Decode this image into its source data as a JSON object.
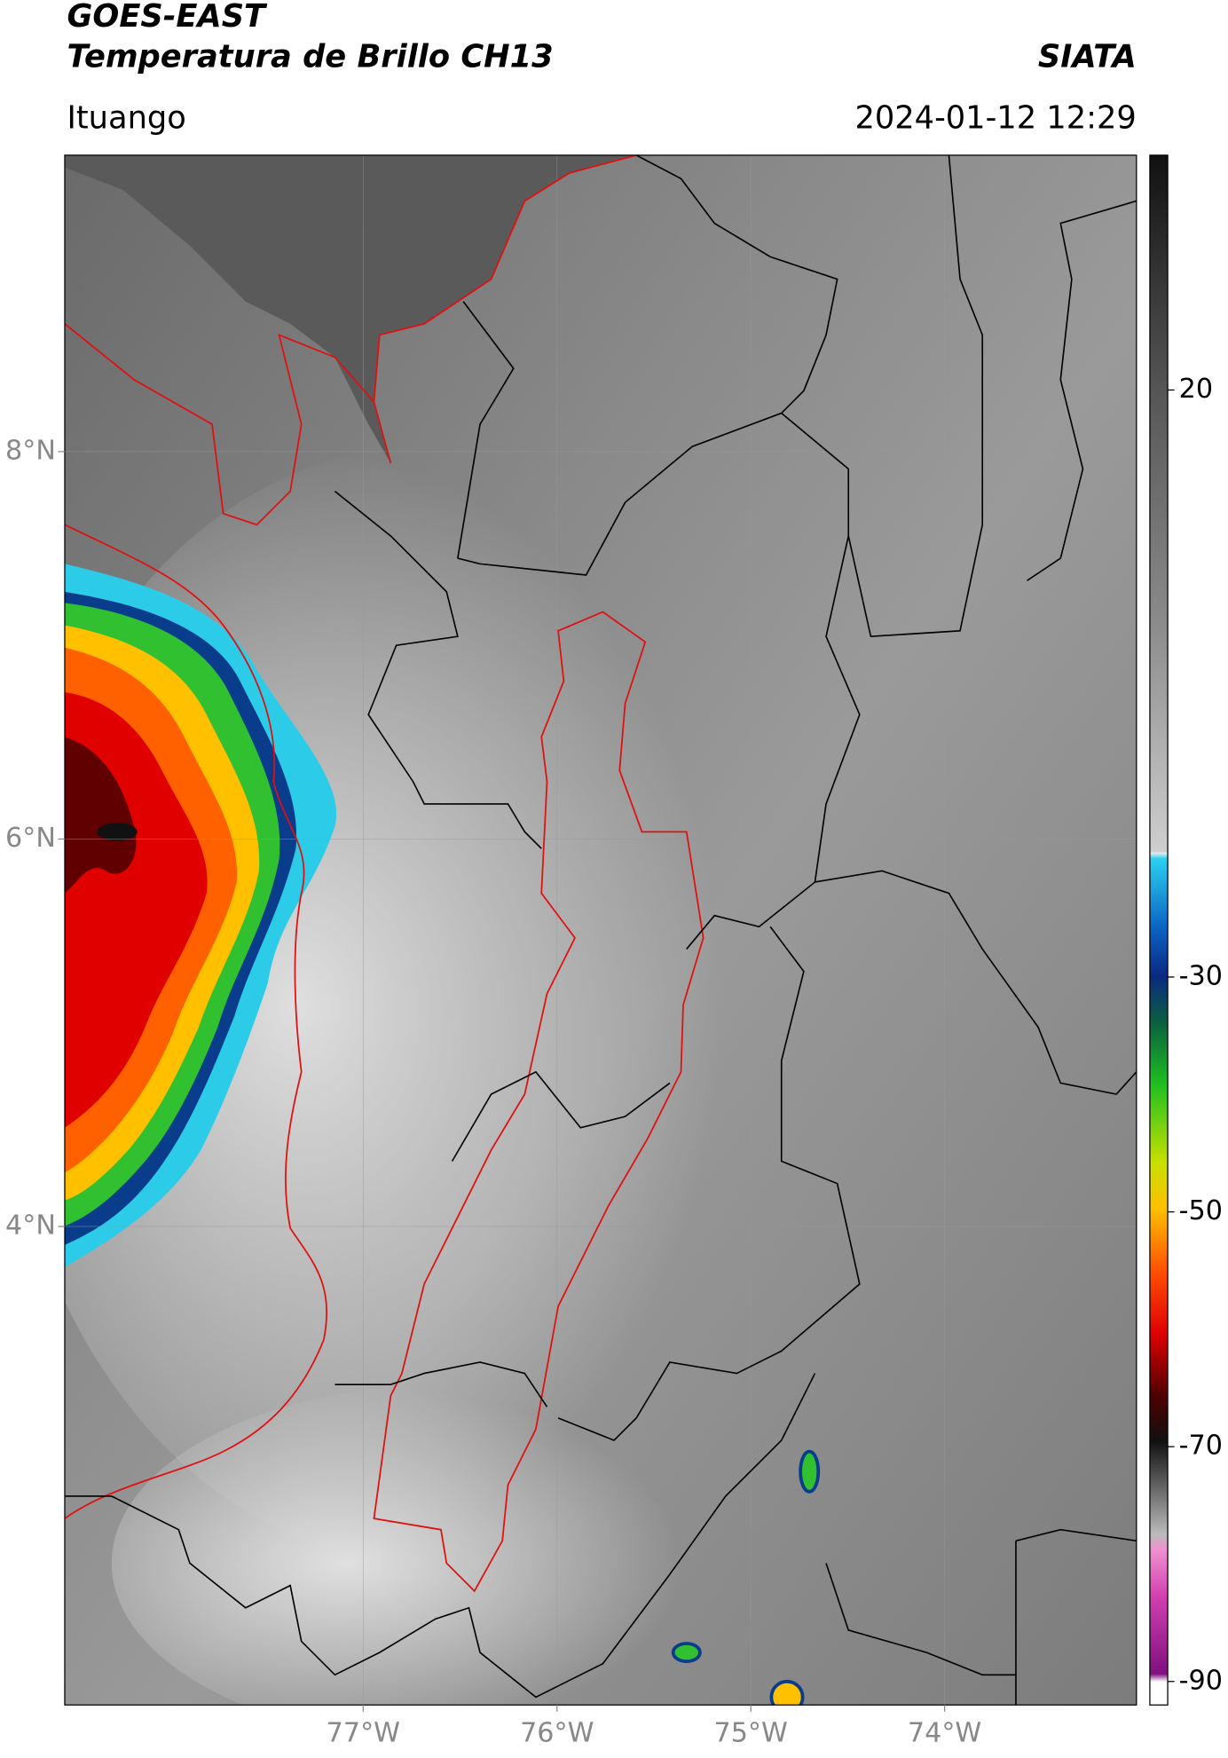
{
  "header": {
    "title_line1": "GOES-EAST",
    "title_line2": "Temperatura de Brillo CH13",
    "source": "SIATA",
    "location": "Ituango",
    "datetime": "2024-01-12 12:29"
  },
  "map": {
    "xlim": [
      -78.54,
      -73.01
    ],
    "ylim": [
      1.53,
      9.53
    ],
    "xticks": [
      {
        "value": -77,
        "label": "77°W"
      },
      {
        "value": -76,
        "label": "76°W"
      },
      {
        "value": -75,
        "label": "75°W"
      },
      {
        "value": -74,
        "label": "74°W"
      }
    ],
    "yticks": [
      {
        "value": 8,
        "label": "8°N"
      },
      {
        "value": 6,
        "label": "6°N"
      },
      {
        "value": 4,
        "label": "4°N"
      }
    ]
  },
  "colorbar": {
    "lim": [
      40,
      -92
    ],
    "ticks": [
      20,
      -30,
      -50,
      -70,
      -90
    ]
  }
}
